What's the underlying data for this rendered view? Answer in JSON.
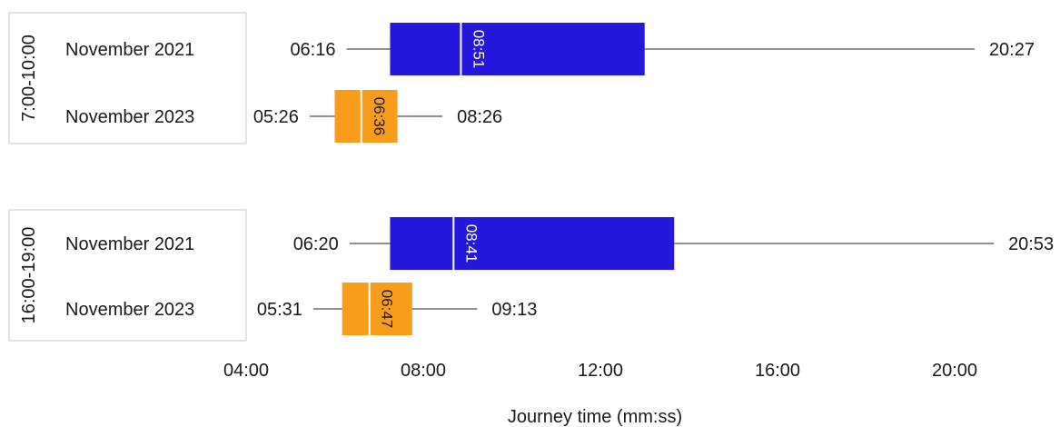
{
  "chart_data": {
    "type": "box",
    "xlabel": "Journey time (mm:ss)",
    "x_ticks": [
      "04:00",
      "08:00",
      "12:00",
      "16:00",
      "20:00"
    ],
    "xlim": [
      "04:00",
      "21:00"
    ],
    "legend": "none",
    "grid": false,
    "colors": {
      "November 2021": "#2518dd",
      "November 2023": "#f89c1c"
    },
    "groups": [
      {
        "label": "7:00-10:00",
        "rows": [
          {
            "label": "November 2021",
            "min": "06:16",
            "q1": "07:15",
            "median": "08:51",
            "q3": "13:00",
            "max": "20:27"
          },
          {
            "label": "November 2023",
            "min": "05:26",
            "q1": "06:00",
            "median": "06:36",
            "q3": "07:25",
            "max": "08:26"
          }
        ]
      },
      {
        "label": "16:00-19:00",
        "rows": [
          {
            "label": "November 2021",
            "min": "06:20",
            "q1": "07:15",
            "median": "08:41",
            "q3": "13:40",
            "max": "20:53"
          },
          {
            "label": "November 2023",
            "min": "05:31",
            "q1": "06:10",
            "median": "06:47",
            "q3": "07:45",
            "max": "09:13"
          }
        ]
      }
    ]
  }
}
